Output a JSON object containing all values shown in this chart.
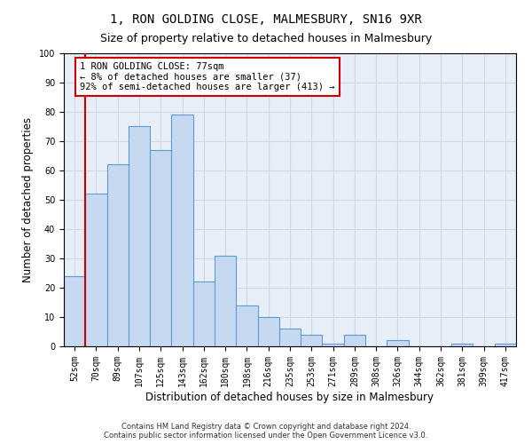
{
  "title": "1, RON GOLDING CLOSE, MALMESBURY, SN16 9XR",
  "subtitle": "Size of property relative to detached houses in Malmesbury",
  "xlabel": "Distribution of detached houses by size in Malmesbury",
  "ylabel": "Number of detached properties",
  "categories": [
    "52sqm",
    "70sqm",
    "89sqm",
    "107sqm",
    "125sqm",
    "143sqm",
    "162sqm",
    "180sqm",
    "198sqm",
    "216sqm",
    "235sqm",
    "253sqm",
    "271sqm",
    "289sqm",
    "308sqm",
    "326sqm",
    "344sqm",
    "362sqm",
    "381sqm",
    "399sqm",
    "417sqm"
  ],
  "values": [
    24,
    52,
    62,
    75,
    67,
    79,
    22,
    31,
    14,
    10,
    6,
    4,
    1,
    4,
    0,
    2,
    0,
    0,
    1,
    0,
    1
  ],
  "bar_color": "#c6d9f0",
  "bar_edge_color": "#5b9bd5",
  "annotation_text": "1 RON GOLDING CLOSE: 77sqm\n← 8% of detached houses are smaller (37)\n92% of semi-detached houses are larger (413) →",
  "annotation_box_color": "#ffffff",
  "annotation_box_edge": "#cc0000",
  "ylim": [
    0,
    100
  ],
  "yticks": [
    0,
    10,
    20,
    30,
    40,
    50,
    60,
    70,
    80,
    90,
    100
  ],
  "grid_color": "#d0d8e8",
  "background_color": "#e8eef8",
  "footer_line1": "Contains HM Land Registry data © Crown copyright and database right 2024.",
  "footer_line2": "Contains public sector information licensed under the Open Government Licence v3.0.",
  "red_line_color": "#cc0000",
  "title_fontsize": 10,
  "subtitle_fontsize": 9,
  "xlabel_fontsize": 8.5,
  "ylabel_fontsize": 8.5,
  "annotation_fontsize": 7.5,
  "tick_fontsize": 7
}
